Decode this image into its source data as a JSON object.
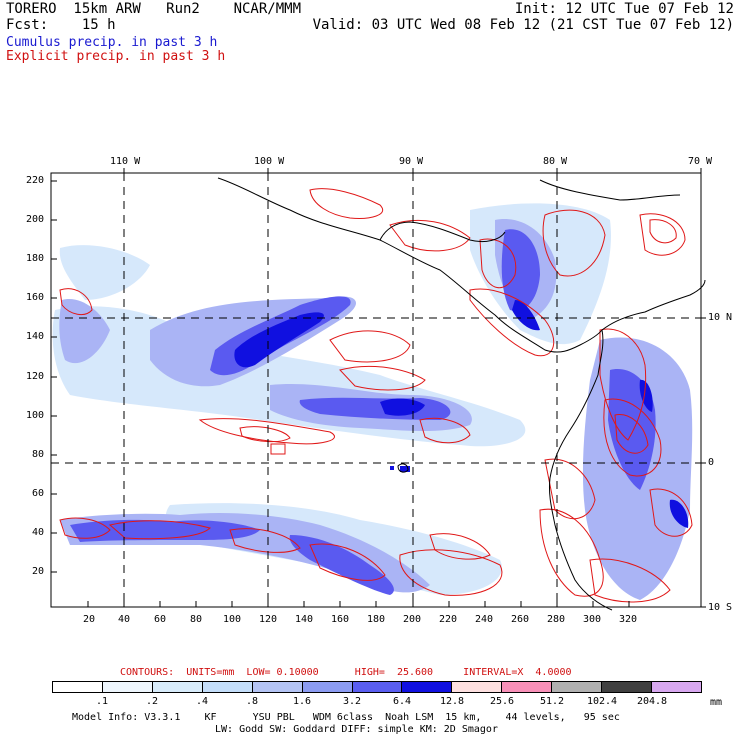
{
  "header": {
    "line1_left": "TORERO  15km ARW   Run2    NCAR/MMM",
    "line1_right": "Init: 12 UTC Tue 07 Feb 12",
    "line2_left": "Fcst:    15 h",
    "line2_right": "Valid: 03 UTC Wed 08 Feb 12 (21 CST Tue 07 Feb 12)",
    "legend_blue": "Cumulus precip. in past 3 h",
    "legend_red": "Explicit precip. in past 3 h"
  },
  "map": {
    "top_lon_labels": [
      "110 W",
      "100 W",
      "90 W",
      "80 W",
      "70 W"
    ],
    "right_lat_labels": [
      "10 N",
      "0",
      "10 S"
    ],
    "left_y_ticks": [
      "220",
      "200",
      "180",
      "160",
      "140",
      "120",
      "100",
      "80",
      "60",
      "40",
      "20"
    ],
    "bottom_x_ticks": [
      "20",
      "40",
      "60",
      "80",
      "100",
      "120",
      "140",
      "160",
      "180",
      "200",
      "220",
      "240",
      "260",
      "280",
      "300",
      "320"
    ],
    "colors": {
      "cumulus_dark": "#1010e0",
      "cumulus_mid": "#5a5af0",
      "cumulus_light": "#aab4f5",
      "cumulus_faint": "#d6e8fb",
      "explicit": "#e01818",
      "coast": "#000000",
      "grid": "#000000"
    }
  },
  "contours": {
    "text": "CONTOURS:  UNITS=mm  LOW= 0.10000      HIGH=  25.600     INTERVAL=X  4.0000"
  },
  "colorbar": {
    "labels": [
      ".1",
      ".2",
      ".4",
      ".8",
      "1.6",
      "3.2",
      "6.4",
      "12.8",
      "25.6",
      "51.2",
      "102.4",
      "204.8"
    ],
    "unit": "mm",
    "colors": [
      "#ffffff",
      "#eef6fd",
      "#d8ecfb",
      "#c4defa",
      "#b4c4f4",
      "#8c9cf2",
      "#5a5ef0",
      "#1010e0",
      "#fde0e0",
      "#f890b8",
      "#b0b0b0",
      "#404040",
      "#d8a8f0"
    ]
  },
  "footer": {
    "line1": "Model Info: V3.3.1    KF      YSU PBL   WDM 6class  Noah LSM  15 km,    44 levels,   95 sec",
    "line2": "LW: Godd SW: Goddard DIFF: simple KM: 2D Smagor"
  }
}
